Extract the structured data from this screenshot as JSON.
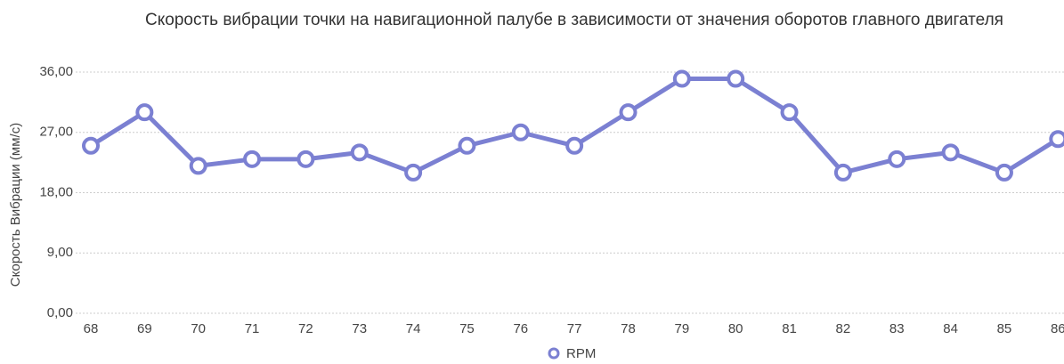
{
  "chart_data": {
    "type": "line",
    "title": "Скорость вибрации точки на навигационной палубе в зависимости от значения оборотов главного двигателя",
    "y_label": "Скорость Вибрации (мм/с)",
    "categories": [
      "68",
      "69",
      "70",
      "71",
      "72",
      "73",
      "74",
      "75",
      "76",
      "77",
      "78",
      "79",
      "80",
      "81",
      "82",
      "83",
      "84",
      "85",
      "86"
    ],
    "series": [
      {
        "name": "RPM",
        "color": "#7b80d2",
        "values": [
          25,
          30,
          22,
          23,
          23,
          24,
          21,
          25,
          27,
          25,
          30,
          35,
          35,
          30,
          21,
          23,
          24,
          21,
          26
        ]
      }
    ],
    "ylim": [
      0,
      36
    ],
    "yticks": [
      {
        "value": 0,
        "label": "0,00"
      },
      {
        "value": 9,
        "label": "9,00"
      },
      {
        "value": 18,
        "label": "18,00"
      },
      {
        "value": 27,
        "label": "27,00"
      },
      {
        "value": 36,
        "label": "36,00"
      }
    ],
    "grid": true,
    "legend": "bottom"
  }
}
